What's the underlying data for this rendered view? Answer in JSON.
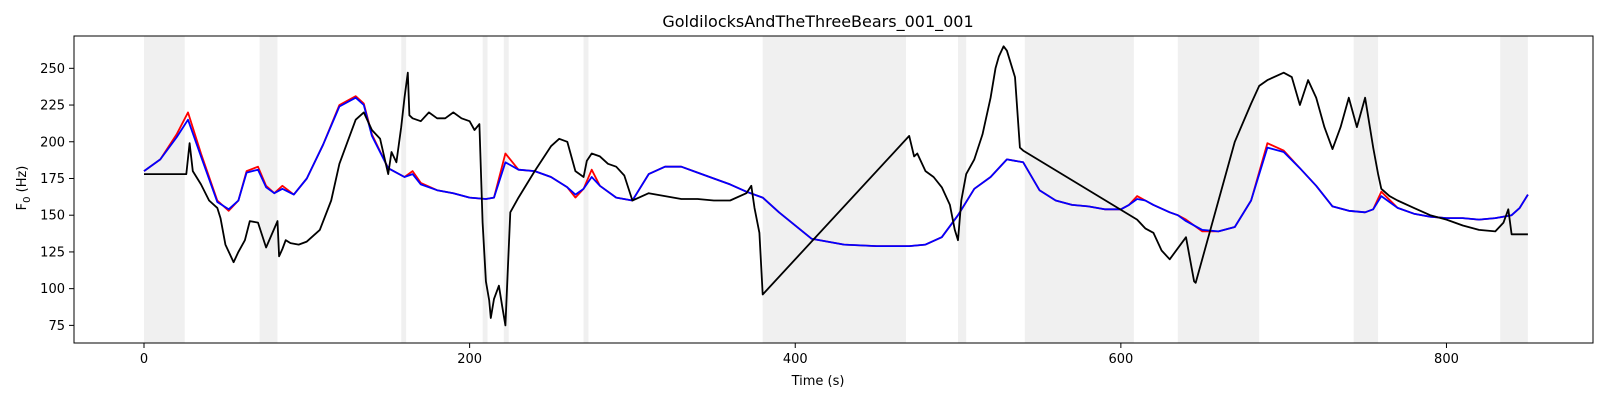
{
  "chart_data": {
    "type": "line",
    "title": "GoldilocksAndTheThreeBears_001_001",
    "xlabel": "Time (s)",
    "ylabel_main": "F",
    "ylabel_sub": "0",
    "ylabel_unit": " (Hz)",
    "xlim": [
      -43,
      890
    ],
    "ylim": [
      63,
      272
    ],
    "x_ticks": [
      0,
      200,
      400,
      600,
      800
    ],
    "y_ticks": [
      75,
      100,
      125,
      150,
      175,
      200,
      225,
      250
    ],
    "grid": false,
    "shaded_regions": [
      [
        0,
        25
      ],
      [
        71,
        82
      ],
      [
        158,
        161
      ],
      [
        208,
        211
      ],
      [
        221,
        224
      ],
      [
        270,
        273
      ],
      [
        380,
        468
      ],
      [
        500,
        505
      ],
      [
        541,
        608
      ],
      [
        635,
        685
      ],
      [
        743,
        758
      ],
      [
        833,
        850
      ]
    ],
    "shade_color": "#f0f0f0",
    "series": [
      {
        "color": "#ff0000",
        "x": [
          0,
          10,
          20,
          27,
          35,
          45,
          52,
          58,
          63,
          70,
          75,
          80,
          85,
          92,
          100,
          110,
          120,
          130,
          135,
          140,
          150,
          160,
          165,
          170,
          180,
          190,
          200,
          210,
          215,
          222,
          230,
          240,
          250,
          260,
          265,
          270,
          275,
          280,
          290,
          300,
          310,
          320,
          330,
          340,
          350,
          360,
          370,
          380,
          390,
          410,
          430,
          450,
          470,
          480,
          490,
          500,
          510,
          520,
          530,
          540,
          550,
          560,
          570,
          580,
          590,
          600,
          605,
          610,
          615,
          620,
          630,
          635,
          640,
          650,
          660,
          670,
          680,
          690,
          700,
          710,
          720,
          730,
          740,
          750,
          755,
          760,
          770,
          780,
          790,
          800,
          810,
          820,
          830,
          840,
          845,
          850
        ],
        "y": [
          180,
          188,
          205,
          220,
          192,
          160,
          153,
          160,
          180,
          183,
          170,
          165,
          170,
          164,
          175,
          198,
          225,
          231,
          226,
          205,
          182,
          176,
          180,
          172,
          167,
          165,
          162,
          161,
          162,
          192,
          181,
          180,
          176,
          169,
          162,
          168,
          181,
          170,
          162,
          160,
          178,
          183,
          183,
          179,
          175,
          171,
          166,
          162,
          152,
          134,
          130,
          129,
          129,
          130,
          135,
          150,
          168,
          176,
          188,
          186,
          167,
          160,
          157,
          156,
          154,
          154,
          157,
          163,
          160,
          157,
          152,
          150,
          147,
          139,
          139,
          142,
          160,
          199,
          194,
          182,
          170,
          156,
          153,
          152,
          154,
          166,
          155,
          151,
          149,
          148,
          148,
          147,
          148,
          150,
          155,
          164
        ]
      },
      {
        "color": "#0000ff",
        "x": [
          0,
          10,
          20,
          27,
          35,
          45,
          52,
          58,
          63,
          70,
          75,
          80,
          85,
          92,
          100,
          110,
          120,
          130,
          135,
          140,
          150,
          160,
          165,
          170,
          180,
          190,
          200,
          210,
          215,
          222,
          230,
          240,
          250,
          260,
          265,
          270,
          275,
          280,
          290,
          300,
          310,
          320,
          330,
          340,
          350,
          360,
          370,
          380,
          390,
          410,
          430,
          450,
          470,
          480,
          490,
          500,
          510,
          520,
          530,
          540,
          550,
          560,
          570,
          580,
          590,
          600,
          605,
          610,
          615,
          620,
          630,
          635,
          640,
          650,
          660,
          670,
          680,
          690,
          700,
          710,
          720,
          730,
          740,
          750,
          755,
          760,
          770,
          780,
          790,
          800,
          810,
          820,
          830,
          840,
          845,
          850
        ],
        "y": [
          180,
          188,
          203,
          215,
          190,
          159,
          154,
          160,
          179,
          181,
          169,
          165,
          168,
          164,
          175,
          198,
          224,
          230,
          225,
          204,
          182,
          176,
          178,
          171,
          167,
          165,
          162,
          161,
          162,
          186,
          181,
          180,
          176,
          169,
          164,
          168,
          176,
          170,
          162,
          160,
          178,
          183,
          183,
          179,
          175,
          171,
          166,
          162,
          152,
          134,
          130,
          129,
          129,
          130,
          135,
          150,
          168,
          176,
          188,
          186,
          167,
          160,
          157,
          156,
          154,
          154,
          157,
          161,
          160,
          157,
          152,
          150,
          146,
          140,
          139,
          142,
          160,
          196,
          193,
          182,
          170,
          156,
          153,
          152,
          154,
          163,
          155,
          151,
          149,
          148,
          148,
          147,
          148,
          150,
          155,
          164
        ]
      },
      {
        "color": "#000000",
        "x": [
          0,
          25,
          26,
          28,
          30,
          35,
          40,
          45,
          47,
          50,
          55,
          58,
          62,
          65,
          70,
          75,
          82,
          83,
          85,
          87,
          90,
          95,
          100,
          108,
          115,
          120,
          125,
          130,
          135,
          140,
          145,
          150,
          152,
          155,
          158,
          160,
          162,
          163,
          165,
          170,
          175,
          180,
          185,
          190,
          195,
          200,
          203,
          206,
          208,
          210,
          212,
          213,
          215,
          218,
          220,
          222,
          225,
          230,
          240,
          250,
          255,
          260,
          265,
          270,
          272,
          275,
          280,
          285,
          290,
          295,
          300,
          310,
          320,
          330,
          340,
          350,
          360,
          370,
          373,
          375,
          378,
          380,
          470,
          473,
          475,
          480,
          485,
          490,
          495,
          498,
          500,
          502,
          505,
          510,
          515,
          520,
          523,
          525,
          528,
          530,
          535,
          538,
          540,
          610,
          615,
          620,
          625,
          630,
          640,
          645,
          646,
          660,
          670,
          680,
          685,
          690,
          700,
          705,
          710,
          715,
          720,
          725,
          730,
          735,
          740,
          745,
          750,
          755,
          758,
          760,
          765,
          770,
          780,
          790,
          800,
          810,
          820,
          830,
          835,
          838,
          840,
          850
        ],
        "y": [
          178,
          178,
          178,
          199,
          180,
          171,
          160,
          155,
          148,
          130,
          118,
          125,
          133,
          146,
          145,
          128,
          146,
          122,
          127,
          133,
          131,
          130,
          132,
          140,
          160,
          185,
          200,
          215,
          220,
          208,
          202,
          178,
          193,
          186,
          210,
          230,
          247,
          218,
          216,
          214,
          220,
          216,
          216,
          220,
          216,
          214,
          208,
          212,
          145,
          105,
          92,
          80,
          93,
          102,
          88,
          75,
          152,
          162,
          180,
          197,
          202,
          200,
          180,
          176,
          187,
          192,
          190,
          185,
          183,
          177,
          160,
          165,
          163,
          161,
          161,
          160,
          160,
          165,
          170,
          155,
          138,
          96,
          204,
          190,
          192,
          180,
          176,
          169,
          157,
          140,
          133,
          160,
          178,
          188,
          205,
          230,
          250,
          258,
          265,
          262,
          244,
          196,
          194,
          147,
          141,
          138,
          126,
          120,
          135,
          105,
          104,
          160,
          200,
          226,
          238,
          242,
          247,
          244,
          225,
          242,
          230,
          210,
          195,
          210,
          230,
          210,
          230,
          196,
          178,
          168,
          163,
          160,
          155,
          150,
          147,
          143,
          140,
          139,
          145,
          154,
          137,
          137
        ]
      }
    ]
  }
}
